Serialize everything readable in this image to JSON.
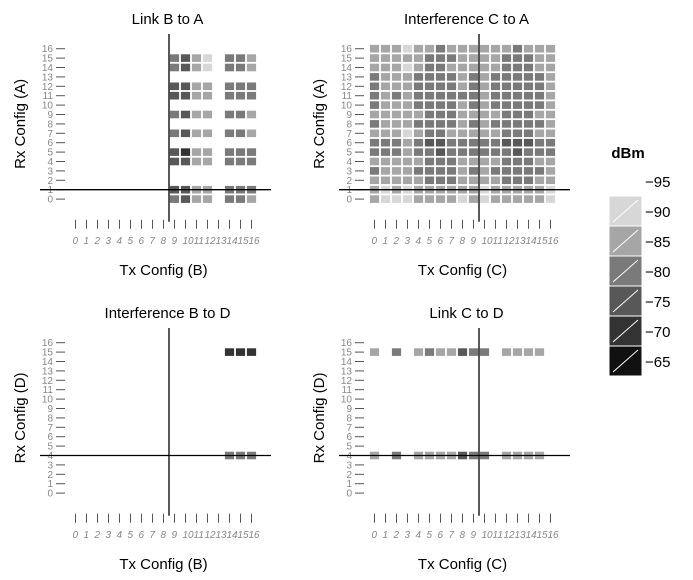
{
  "figure": {
    "legend": {
      "title": "dBm",
      "labels": [
        "−95",
        "−90",
        "−85",
        "−80",
        "−75",
        "−70",
        "−65"
      ]
    }
  },
  "colors": {
    "bins": [
      "#d7d7d7",
      "#a6a6a6",
      "#7a7a7a",
      "#585858",
      "#333333",
      "#111111"
    ],
    "line": "#000000",
    "tick": "#555555",
    "tick_label": "#888888",
    "cell_border": "#ffffff"
  },
  "chart_data": [
    {
      "type": "heatmap",
      "title": "Link B to A",
      "xlabel": "Tx Config (B)",
      "ylabel": "Rx Config (A)",
      "x_ticks": [
        "0",
        "1",
        "2",
        "3",
        "4",
        "5",
        "6",
        "7",
        "8",
        "9",
        "10",
        "11",
        "12",
        "13",
        "14",
        "15",
        "16"
      ],
      "y_ticks": [
        "0",
        "1",
        "2",
        "3",
        "4",
        "5",
        "6",
        "7",
        "8",
        "9",
        "10",
        "11",
        "12",
        "13",
        "14",
        "15",
        "16"
      ],
      "crosshair": {
        "x": 9,
        "y": 1
      },
      "color_range_dbm": [
        -95,
        -65
      ],
      "cells": [
        [
          9,
          0,
          -83
        ],
        [
          9,
          1,
          -79
        ],
        [
          9,
          4,
          -80
        ],
        [
          9,
          5,
          -79
        ],
        [
          9,
          7,
          -82
        ],
        [
          9,
          9,
          -82
        ],
        [
          9,
          11,
          -80
        ],
        [
          9,
          12,
          -79
        ],
        [
          9,
          14,
          -83
        ],
        [
          9,
          15,
          -83
        ],
        [
          10,
          0,
          -79
        ],
        [
          10,
          1,
          -77
        ],
        [
          10,
          4,
          -77
        ],
        [
          10,
          5,
          -75
        ],
        [
          10,
          7,
          -77
        ],
        [
          10,
          9,
          -79
        ],
        [
          10,
          11,
          -76
        ],
        [
          10,
          12,
          -76
        ],
        [
          10,
          14,
          -79
        ],
        [
          10,
          15,
          -79
        ],
        [
          11,
          0,
          -88
        ],
        [
          11,
          1,
          -87
        ],
        [
          11,
          4,
          -86
        ],
        [
          11,
          5,
          -86
        ],
        [
          11,
          7,
          -88
        ],
        [
          11,
          9,
          -89
        ],
        [
          11,
          11,
          -87
        ],
        [
          11,
          12,
          -87
        ],
        [
          11,
          14,
          -89
        ],
        [
          11,
          15,
          -89
        ],
        [
          12,
          0,
          -88
        ],
        [
          12,
          1,
          -88
        ],
        [
          12,
          4,
          -87
        ],
        [
          12,
          5,
          -87
        ],
        [
          12,
          7,
          -89
        ],
        [
          12,
          9,
          -89
        ],
        [
          12,
          11,
          -87
        ],
        [
          12,
          12,
          -88
        ],
        [
          12,
          14,
          -91
        ],
        [
          12,
          15,
          -91
        ],
        [
          14,
          0,
          -83
        ],
        [
          14,
          1,
          -82
        ],
        [
          14,
          4,
          -81
        ],
        [
          14,
          5,
          -81
        ],
        [
          14,
          7,
          -84
        ],
        [
          14,
          9,
          -84
        ],
        [
          14,
          11,
          -82
        ],
        [
          14,
          12,
          -82
        ],
        [
          14,
          14,
          -85
        ],
        [
          14,
          15,
          -84
        ],
        [
          15,
          0,
          -84
        ],
        [
          15,
          1,
          -83
        ],
        [
          15,
          4,
          -82
        ],
        [
          15,
          5,
          -82
        ],
        [
          15,
          7,
          -85
        ],
        [
          15,
          9,
          -85
        ],
        [
          15,
          11,
          -83
        ],
        [
          15,
          12,
          -83
        ],
        [
          15,
          14,
          -85
        ],
        [
          15,
          15,
          -85
        ],
        [
          16,
          0,
          -86
        ],
        [
          16,
          1,
          -85
        ],
        [
          16,
          4,
          -84
        ],
        [
          16,
          5,
          -84
        ],
        [
          16,
          7,
          -87
        ],
        [
          16,
          9,
          -87
        ],
        [
          16,
          11,
          -85
        ],
        [
          16,
          12,
          -85
        ],
        [
          16,
          14,
          -89
        ],
        [
          16,
          15,
          -89
        ]
      ]
    },
    {
      "type": "heatmap",
      "title": "Interference C to A",
      "xlabel": "Tx Config (C)",
      "ylabel": "Rx Config (A)",
      "x_ticks": [
        "0",
        "1",
        "2",
        "3",
        "4",
        "5",
        "6",
        "7",
        "8",
        "9",
        "10",
        "11",
        "12",
        "13",
        "14",
        "15",
        "16"
      ],
      "y_ticks": [
        "0",
        "1",
        "2",
        "3",
        "4",
        "5",
        "6",
        "7",
        "8",
        "9",
        "10",
        "11",
        "12",
        "13",
        "14",
        "15",
        "16"
      ],
      "crosshair": {
        "x": 10,
        "y": 1
      },
      "color_range_dbm": [
        -95,
        -65
      ],
      "grid_full": true,
      "col_base_dbm": [
        -86,
        -88,
        -87,
        -90,
        -86,
        -84,
        -83,
        -85,
        -87,
        -86,
        -88,
        -86,
        -84,
        -83,
        -84,
        -86,
        -88
      ],
      "row_offset_db": [
        -4,
        -3,
        0,
        1,
        0,
        3,
        4,
        -1,
        1,
        0,
        1,
        2,
        1,
        1,
        -1,
        0,
        -2
      ]
    },
    {
      "type": "heatmap",
      "title": "Interference B to D",
      "xlabel": "Tx Config (B)",
      "ylabel": "Rx Config (D)",
      "x_ticks": [
        "0",
        "1",
        "2",
        "3",
        "4",
        "5",
        "6",
        "7",
        "8",
        "9",
        "10",
        "11",
        "12",
        "13",
        "14",
        "15",
        "16"
      ],
      "y_ticks": [
        "0",
        "1",
        "2",
        "3",
        "4",
        "5",
        "6",
        "7",
        "8",
        "9",
        "10",
        "11",
        "12",
        "13",
        "14",
        "15",
        "16"
      ],
      "crosshair": {
        "x": 9,
        "y": 4
      },
      "color_range_dbm": [
        -95,
        -65
      ],
      "cells": [
        [
          14,
          4,
          -82
        ],
        [
          14,
          15,
          -71
        ],
        [
          15,
          4,
          -83
        ],
        [
          15,
          15,
          -72
        ],
        [
          16,
          4,
          -82
        ],
        [
          16,
          15,
          -71
        ]
      ]
    },
    {
      "type": "heatmap",
      "title": "Link C to D",
      "xlabel": "Tx Config (C)",
      "ylabel": "Rx Config (D)",
      "x_ticks": [
        "0",
        "1",
        "2",
        "3",
        "4",
        "5",
        "6",
        "7",
        "8",
        "9",
        "10",
        "11",
        "12",
        "13",
        "14",
        "15",
        "16"
      ],
      "y_ticks": [
        "0",
        "1",
        "2",
        "3",
        "4",
        "5",
        "6",
        "7",
        "8",
        "9",
        "10",
        "11",
        "12",
        "13",
        "14",
        "15",
        "16"
      ],
      "crosshair": {
        "x": 10,
        "y": 4
      },
      "color_range_dbm": [
        -95,
        -65
      ],
      "cells": [
        [
          0,
          4,
          -86
        ],
        [
          0,
          15,
          -86
        ],
        [
          2,
          4,
          -83
        ],
        [
          2,
          15,
          -83
        ],
        [
          4,
          4,
          -86
        ],
        [
          4,
          15,
          -86
        ],
        [
          5,
          4,
          -86
        ],
        [
          5,
          15,
          -85
        ],
        [
          6,
          4,
          -88
        ],
        [
          6,
          15,
          -88
        ],
        [
          7,
          4,
          -87
        ],
        [
          7,
          15,
          -87
        ],
        [
          8,
          4,
          -80
        ],
        [
          8,
          15,
          -80
        ],
        [
          9,
          4,
          -84
        ],
        [
          9,
          15,
          -84
        ],
        [
          10,
          4,
          -85
        ],
        [
          10,
          15,
          -85
        ],
        [
          12,
          4,
          -88
        ],
        [
          12,
          15,
          -88
        ],
        [
          13,
          4,
          -87
        ],
        [
          13,
          15,
          -87
        ],
        [
          14,
          4,
          -87
        ],
        [
          14,
          15,
          -87
        ],
        [
          15,
          4,
          -88
        ],
        [
          15,
          15,
          -88
        ]
      ]
    }
  ]
}
